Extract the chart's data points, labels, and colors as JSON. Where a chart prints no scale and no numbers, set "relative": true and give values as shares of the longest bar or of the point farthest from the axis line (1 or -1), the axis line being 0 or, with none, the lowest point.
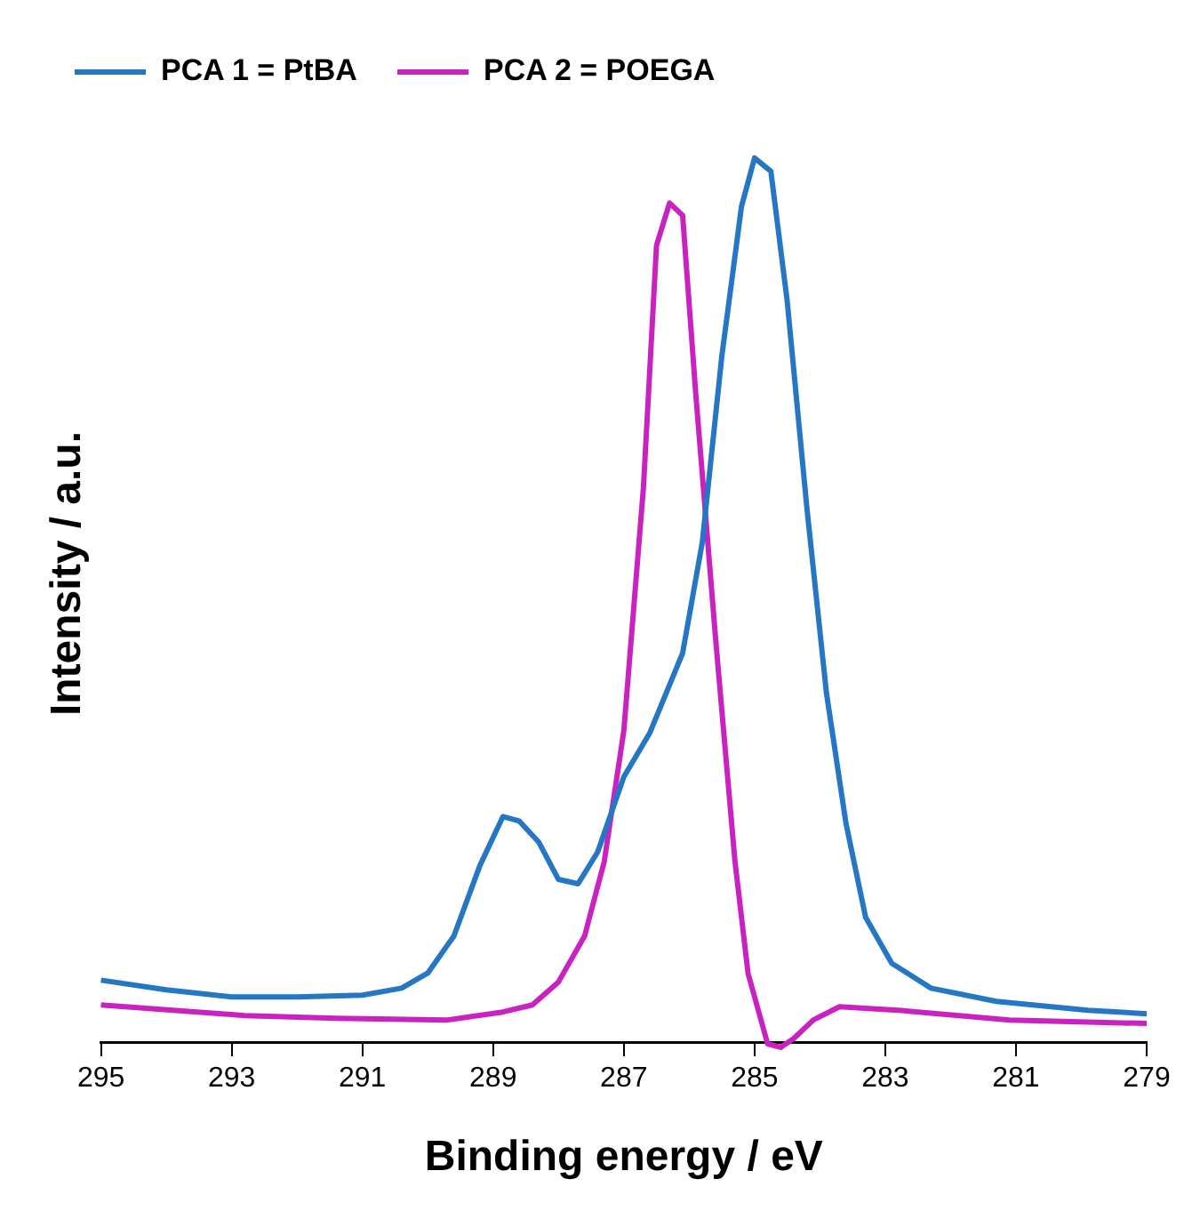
{
  "chart_data": {
    "type": "line",
    "relative": true,
    "xlabel": "Binding energy / eV",
    "ylabel": "Intensity / a.u.",
    "xlim": [
      295,
      279
    ],
    "xticks": [
      295,
      293,
      291,
      289,
      287,
      285,
      283,
      281,
      279
    ],
    "grid": false,
    "legend": "top left",
    "marker": "none",
    "line_style": "solid",
    "tick_labels": "x",
    "series": [
      {
        "name": "PCA 1 = PtBA",
        "color": "#2577c4",
        "x": [
          295,
          294,
          293,
          292,
          291,
          290.4,
          290,
          289.6,
          289.2,
          288.85,
          288.6,
          288.3,
          288,
          287.7,
          287.4,
          287,
          286.6,
          286.1,
          285.8,
          285.5,
          285.2,
          285,
          284.75,
          284.5,
          284.2,
          283.9,
          283.6,
          283.3,
          282.9,
          282.3,
          281.3,
          279.9,
          279
        ],
        "values": [
          0.07,
          0.059,
          0.051,
          0.051,
          0.053,
          0.061,
          0.078,
          0.12,
          0.2,
          0.255,
          0.25,
          0.226,
          0.184,
          0.179,
          0.215,
          0.3,
          0.35,
          0.44,
          0.565,
          0.776,
          0.945,
          1,
          0.985,
          0.838,
          0.605,
          0.395,
          0.247,
          0.141,
          0.089,
          0.061,
          0.046,
          0.036,
          0.032
        ]
      },
      {
        "name": "PCA 2 = POEGA",
        "color": "#c823c0",
        "x": [
          295,
          292.8,
          291.4,
          289.7,
          288.85,
          288.4,
          288,
          287.6,
          287.3,
          287,
          286.7,
          286.5,
          286.3,
          286.1,
          285.9,
          285.6,
          285.3,
          285.1,
          284.8,
          284.6,
          284.4,
          284.1,
          283.7,
          282.8,
          281.1,
          279
        ],
        "values": [
          0.042,
          0.03,
          0.027,
          0.025,
          0.034,
          0.042,
          0.068,
          0.12,
          0.204,
          0.352,
          0.627,
          0.901,
          0.949,
          0.935,
          0.734,
          0.46,
          0.205,
          0.078,
          -0.002,
          -0.006,
          0.004,
          0.025,
          0.04,
          0.036,
          0.025,
          0.021
        ]
      }
    ]
  }
}
